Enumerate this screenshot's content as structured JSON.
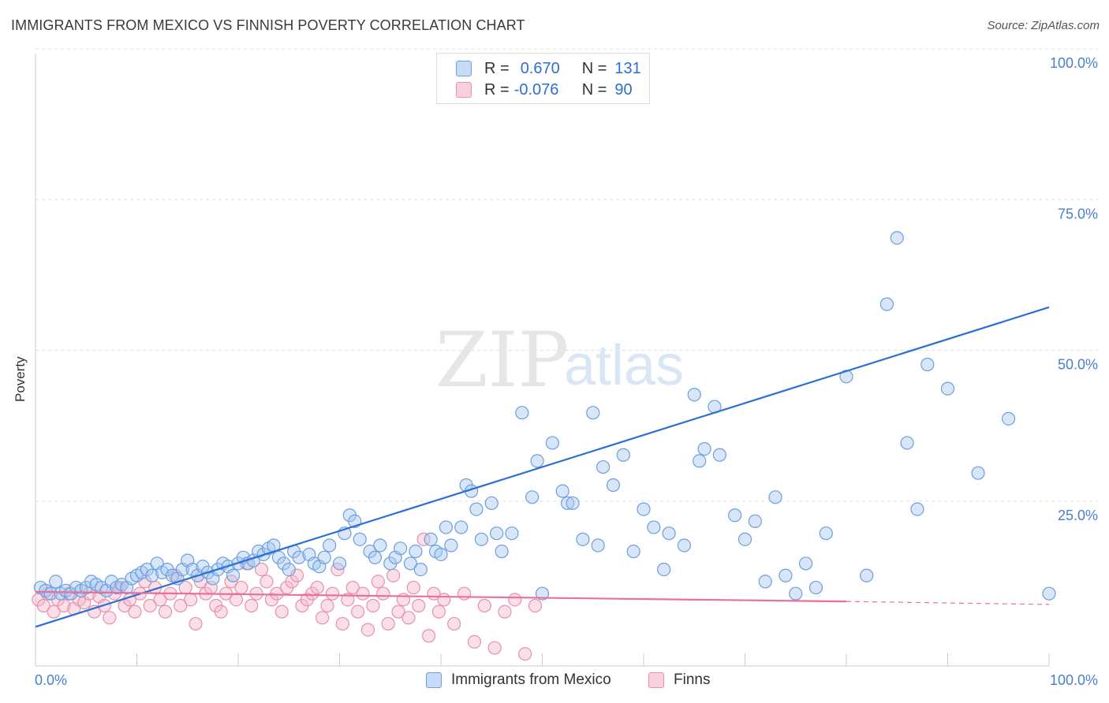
{
  "header": {
    "title": "IMMIGRANTS FROM MEXICO VS FINNISH POVERTY CORRELATION CHART",
    "source": "Source: ZipAtlas.com"
  },
  "legend": {
    "rows": [
      {
        "r_label": "R =",
        "r_value": "0.670",
        "n_label": "N =",
        "n_value": "131"
      },
      {
        "r_label": "R =",
        "r_value": "-0.076",
        "n_label": "N =",
        "n_value": "90"
      }
    ]
  },
  "bottom_legend": {
    "series1": "Immigrants from Mexico",
    "series2": "Finns"
  },
  "colors": {
    "blue_fill": "#a8c8f0",
    "blue_stroke": "#6a9fe0",
    "blue_line": "#2a6fd6",
    "pink_fill": "#f5b8cc",
    "pink_stroke": "#e890ac",
    "pink_line": "#e8709a",
    "axis_value": "#4a7ed0",
    "grid": "#dddddd"
  },
  "watermark": {
    "zip": "ZIP",
    "atlas": "atlas"
  },
  "chart_data": {
    "type": "scatter",
    "xlabel": "",
    "ylabel": "Poverty",
    "xlim": [
      0,
      100
    ],
    "ylim": [
      0,
      100
    ],
    "x_ticks": [
      "0.0%",
      "100.0%"
    ],
    "y_ticks": [
      "25.0%",
      "50.0%",
      "75.0%",
      "100.0%"
    ],
    "series": [
      {
        "name": "Immigrants from Mexico",
        "color": "#6a9fe0",
        "trend": {
          "x": [
            0,
            100
          ],
          "y": [
            6.5,
            59.5
          ]
        },
        "points": [
          [
            0.5,
            13
          ],
          [
            1,
            12.5
          ],
          [
            1.5,
            12
          ],
          [
            2,
            14
          ],
          [
            2.5,
            12
          ],
          [
            3,
            12.5
          ],
          [
            3.5,
            12
          ],
          [
            4,
            13
          ],
          [
            4.5,
            12.5
          ],
          [
            5,
            13
          ],
          [
            5.5,
            14
          ],
          [
            6,
            13.5
          ],
          [
            6.5,
            13
          ],
          [
            7,
            12.5
          ],
          [
            7.5,
            14
          ],
          [
            8,
            13
          ],
          [
            8.5,
            13.5
          ],
          [
            9,
            13
          ],
          [
            9.5,
            14.5
          ],
          [
            10,
            15
          ],
          [
            10.5,
            15.5
          ],
          [
            11,
            16
          ],
          [
            11.5,
            15
          ],
          [
            12,
            17
          ],
          [
            12.5,
            15.5
          ],
          [
            13,
            16
          ],
          [
            13.5,
            15
          ],
          [
            14,
            14.5
          ],
          [
            14.5,
            16
          ],
          [
            15,
            17.5
          ],
          [
            15.5,
            16
          ],
          [
            16,
            15
          ],
          [
            16.5,
            16.5
          ],
          [
            17,
            15.5
          ],
          [
            17.5,
            14.5
          ],
          [
            18,
            16
          ],
          [
            18.5,
            17
          ],
          [
            19,
            16.5
          ],
          [
            19.5,
            15
          ],
          [
            20,
            17
          ],
          [
            20.5,
            18
          ],
          [
            21,
            17
          ],
          [
            21.5,
            17.5
          ],
          [
            22,
            19
          ],
          [
            22.5,
            18.5
          ],
          [
            23,
            19.5
          ],
          [
            23.5,
            20
          ],
          [
            24,
            18
          ],
          [
            24.5,
            17
          ],
          [
            25,
            16
          ],
          [
            25.5,
            19
          ],
          [
            26,
            18
          ],
          [
            27,
            18.5
          ],
          [
            27.5,
            17
          ],
          [
            28,
            16.5
          ],
          [
            28.5,
            18
          ],
          [
            29,
            20
          ],
          [
            30,
            17
          ],
          [
            30.5,
            22
          ],
          [
            31,
            25
          ],
          [
            31.5,
            24
          ],
          [
            32,
            21
          ],
          [
            33,
            19
          ],
          [
            33.5,
            18
          ],
          [
            34,
            20
          ],
          [
            35,
            17
          ],
          [
            35.5,
            18
          ],
          [
            36,
            19.5
          ],
          [
            37,
            17
          ],
          [
            37.5,
            19
          ],
          [
            38,
            16
          ],
          [
            39,
            21
          ],
          [
            39.5,
            19
          ],
          [
            40,
            18.5
          ],
          [
            40.5,
            23
          ],
          [
            41,
            20
          ],
          [
            42,
            23
          ],
          [
            42.5,
            30
          ],
          [
            43,
            29
          ],
          [
            43.5,
            26
          ],
          [
            44,
            21
          ],
          [
            45,
            27
          ],
          [
            45.5,
            22
          ],
          [
            46,
            19
          ],
          [
            47,
            22
          ],
          [
            48,
            42
          ],
          [
            49,
            28
          ],
          [
            49.5,
            34
          ],
          [
            50,
            12
          ],
          [
            51,
            37
          ],
          [
            52,
            29
          ],
          [
            52.5,
            27
          ],
          [
            53,
            27
          ],
          [
            54,
            21
          ],
          [
            55,
            42
          ],
          [
            55.5,
            20
          ],
          [
            56,
            33
          ],
          [
            57,
            30
          ],
          [
            58,
            35
          ],
          [
            59,
            19
          ],
          [
            60,
            26
          ],
          [
            61,
            23
          ],
          [
            62,
            16
          ],
          [
            62.5,
            22
          ],
          [
            64,
            20
          ],
          [
            65,
            45
          ],
          [
            65.5,
            34
          ],
          [
            66,
            36
          ],
          [
            67,
            43
          ],
          [
            67.5,
            35
          ],
          [
            69,
            25
          ],
          [
            70,
            21
          ],
          [
            71,
            24
          ],
          [
            72,
            14
          ],
          [
            73,
            28
          ],
          [
            74,
            15
          ],
          [
            75,
            12
          ],
          [
            76,
            17
          ],
          [
            77,
            13
          ],
          [
            78,
            22
          ],
          [
            80,
            48
          ],
          [
            82,
            15
          ],
          [
            84,
            60
          ],
          [
            85,
            71
          ],
          [
            86,
            37
          ],
          [
            87,
            26
          ],
          [
            88,
            50
          ],
          [
            90,
            46
          ],
          [
            93,
            32
          ],
          [
            96,
            41
          ],
          [
            100,
            12
          ]
        ]
      },
      {
        "name": "Finns",
        "color": "#e890ac",
        "trend": {
          "x": [
            0,
            80
          ],
          "y": [
            12.3,
            10.7
          ]
        },
        "trend_dashed": {
          "x": [
            80,
            100
          ],
          "y": [
            10.7,
            10.2
          ]
        },
        "points": [
          [
            0.3,
            11
          ],
          [
            0.8,
            10
          ],
          [
            1.2,
            12
          ],
          [
            1.8,
            9
          ],
          [
            2.2,
            11
          ],
          [
            2.8,
            10
          ],
          [
            3.3,
            12
          ],
          [
            3.8,
            9.5
          ],
          [
            4.3,
            11
          ],
          [
            4.8,
            10.5
          ],
          [
            5.3,
            12
          ],
          [
            5.8,
            9
          ],
          [
            6.3,
            11.5
          ],
          [
            6.8,
            10
          ],
          [
            7.3,
            8
          ],
          [
            7.8,
            12
          ],
          [
            8.3,
            13
          ],
          [
            8.8,
            10
          ],
          [
            9.3,
            11
          ],
          [
            9.8,
            9
          ],
          [
            10.3,
            12
          ],
          [
            10.8,
            14
          ],
          [
            11.3,
            10
          ],
          [
            11.8,
            13
          ],
          [
            12.3,
            11
          ],
          [
            12.8,
            9
          ],
          [
            13.3,
            12
          ],
          [
            13.8,
            15
          ],
          [
            14.3,
            10
          ],
          [
            14.8,
            13
          ],
          [
            15.3,
            11
          ],
          [
            15.8,
            7
          ],
          [
            16.3,
            14
          ],
          [
            16.8,
            12
          ],
          [
            17.3,
            13
          ],
          [
            17.8,
            10
          ],
          [
            18.3,
            9
          ],
          [
            18.8,
            12
          ],
          [
            19.3,
            14
          ],
          [
            19.8,
            11
          ],
          [
            20.3,
            13
          ],
          [
            20.8,
            17
          ],
          [
            21.3,
            10
          ],
          [
            21.8,
            12
          ],
          [
            22.3,
            16
          ],
          [
            22.8,
            14
          ],
          [
            23.3,
            11
          ],
          [
            23.8,
            12
          ],
          [
            24.3,
            9
          ],
          [
            24.8,
            13
          ],
          [
            25.3,
            14
          ],
          [
            25.8,
            15
          ],
          [
            26.3,
            10
          ],
          [
            26.8,
            11
          ],
          [
            27.3,
            12
          ],
          [
            27.8,
            13
          ],
          [
            28.3,
            8
          ],
          [
            28.8,
            10
          ],
          [
            29.3,
            12
          ],
          [
            29.8,
            16
          ],
          [
            30.3,
            7
          ],
          [
            30.8,
            11
          ],
          [
            31.3,
            13
          ],
          [
            31.8,
            9
          ],
          [
            32.3,
            12
          ],
          [
            32.8,
            6
          ],
          [
            33.3,
            10
          ],
          [
            33.8,
            14
          ],
          [
            34.3,
            12
          ],
          [
            34.8,
            7
          ],
          [
            35.3,
            15
          ],
          [
            35.8,
            9
          ],
          [
            36.3,
            11
          ],
          [
            36.8,
            8
          ],
          [
            37.3,
            13
          ],
          [
            37.8,
            10
          ],
          [
            38.3,
            21
          ],
          [
            38.8,
            5
          ],
          [
            39.3,
            12
          ],
          [
            39.8,
            9
          ],
          [
            40.3,
            11
          ],
          [
            41.3,
            7
          ],
          [
            42.3,
            12
          ],
          [
            43.3,
            4
          ],
          [
            44.3,
            10
          ],
          [
            45.3,
            3
          ],
          [
            46.3,
            9
          ],
          [
            47.3,
            11
          ],
          [
            48.3,
            2
          ],
          [
            49.3,
            10
          ]
        ]
      }
    ]
  }
}
